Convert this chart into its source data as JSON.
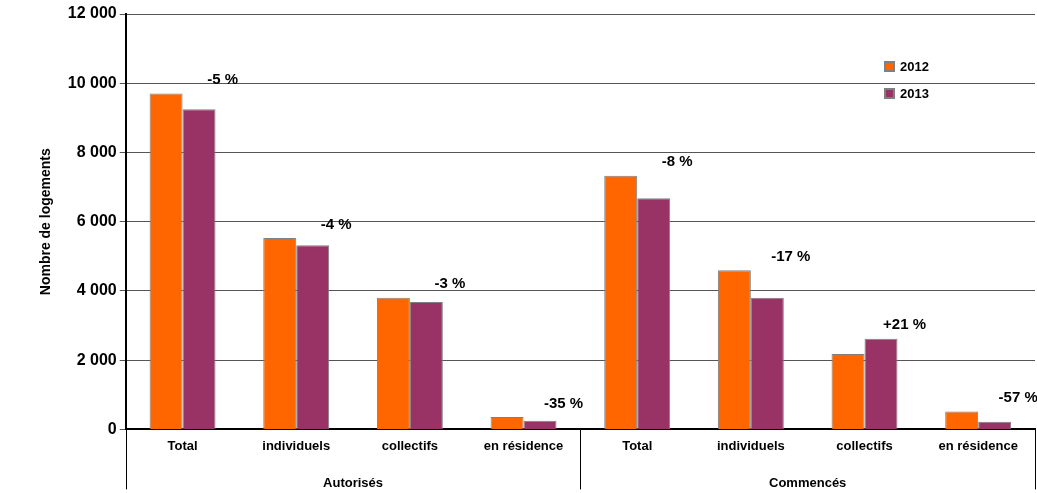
{
  "chart_data": {
    "type": "bar",
    "ylabel": "Nombre de logements",
    "categories": [
      "Total",
      "individuels",
      "collectifs",
      "en résidence",
      "Total",
      "individuels",
      "collectifs",
      "en résidence"
    ],
    "series": [
      {
        "name": "2012",
        "color": "#ff6600",
        "values": [
          9700,
          5530,
          3800,
          360,
          7330,
          4600,
          2180,
          520
        ]
      },
      {
        "name": "2013",
        "color": "#993366",
        "values": [
          9250,
          5320,
          3680,
          250,
          6680,
          3800,
          2620,
          220
        ]
      }
    ],
    "ylim": [
      0,
      12000
    ],
    "yticks": [
      0,
      {
        "value": 2000,
        "label": "2 000"
      },
      {
        "value": 4000,
        "label": "4 000"
      },
      {
        "value": 6000,
        "label": "6 000"
      },
      {
        "value": 8000,
        "label": "8 000"
      },
      {
        "value": 10000,
        "label": "10 000"
      },
      {
        "value": 12000,
        "label": "12 000"
      }
    ],
    "grid": "y",
    "legend": "top right",
    "annotations": [
      "-5 %",
      "-4 %",
      "-3 %",
      "-35 %",
      "-8 %",
      "-17 %",
      "+21 %",
      "-57 %",
      "Autorisés",
      "Commencés"
    ]
  }
}
